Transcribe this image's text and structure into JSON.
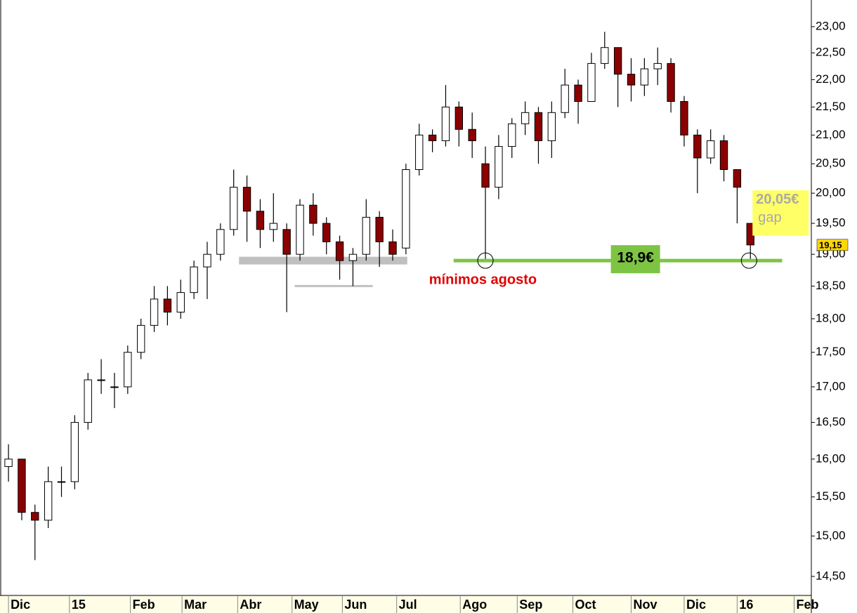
{
  "chart_data": {
    "type": "candlestick",
    "x": [
      0,
      1,
      2,
      3,
      4,
      5,
      6,
      7,
      8,
      9,
      10,
      11,
      12,
      13,
      14,
      15,
      16,
      17,
      18,
      19,
      20,
      21,
      22,
      23,
      24,
      25,
      26,
      27,
      28,
      29,
      30,
      31,
      32,
      33,
      34,
      35,
      36,
      37,
      38,
      39,
      40,
      41,
      42,
      43,
      44,
      45,
      46,
      47,
      48,
      49,
      50,
      51,
      52,
      53,
      54,
      55,
      56
    ],
    "open": [
      15.9,
      16.0,
      15.3,
      15.2,
      15.7,
      15.7,
      16.5,
      17.1,
      17.0,
      17.0,
      17.5,
      17.9,
      18.3,
      18.1,
      18.4,
      18.8,
      19.0,
      19.4,
      20.1,
      19.7,
      19.4,
      19.4,
      19.0,
      19.8,
      19.5,
      19.2,
      18.9,
      19.0,
      19.6,
      19.2,
      19.1,
      20.4,
      21.0,
      20.9,
      21.5,
      21.1,
      20.5,
      20.1,
      20.8,
      21.2,
      21.4,
      20.9,
      21.4,
      21.9,
      21.6,
      22.3,
      22.6,
      22.1,
      21.9,
      22.2,
      22.3,
      21.6,
      21.0,
      20.6,
      20.9,
      20.4,
      19.5
    ],
    "high": [
      16.2,
      16.0,
      15.4,
      15.9,
      15.9,
      16.6,
      17.2,
      17.4,
      17.2,
      17.6,
      18.0,
      18.5,
      18.5,
      18.6,
      18.9,
      19.2,
      19.5,
      20.4,
      20.3,
      19.9,
      20.0,
      19.5,
      19.9,
      20.0,
      19.6,
      19.3,
      19.1,
      19.9,
      19.7,
      19.4,
      20.5,
      21.2,
      21.1,
      21.9,
      21.6,
      21.4,
      20.8,
      21.0,
      21.3,
      21.6,
      21.5,
      21.6,
      22.2,
      22.0,
      22.5,
      22.9,
      22.6,
      22.4,
      22.4,
      22.6,
      22.4,
      21.7,
      21.1,
      21.1,
      21.0,
      20.4,
      19.5
    ],
    "low": [
      15.7,
      15.2,
      14.7,
      15.1,
      15.5,
      15.6,
      16.4,
      16.9,
      16.7,
      16.9,
      17.4,
      17.8,
      17.9,
      18.0,
      18.3,
      18.3,
      18.9,
      19.3,
      19.2,
      19.1,
      19.2,
      18.1,
      18.9,
      19.3,
      19.0,
      18.6,
      18.5,
      18.9,
      18.8,
      18.9,
      19.0,
      20.3,
      20.7,
      20.8,
      20.8,
      20.6,
      18.9,
      19.9,
      20.6,
      21.0,
      20.5,
      20.6,
      21.3,
      21.2,
      21.6,
      22.2,
      21.5,
      21.6,
      21.7,
      21.9,
      21.4,
      20.8,
      20.0,
      20.5,
      20.2,
      19.5,
      18.9
    ],
    "close": [
      16.0,
      15.3,
      15.2,
      15.7,
      15.7,
      16.5,
      17.1,
      17.1,
      17.0,
      17.5,
      17.9,
      18.3,
      18.1,
      18.4,
      18.8,
      19.0,
      19.4,
      20.1,
      19.7,
      19.4,
      19.5,
      19.0,
      19.8,
      19.5,
      19.2,
      18.9,
      19.0,
      19.6,
      19.2,
      19.0,
      20.4,
      21.0,
      20.9,
      21.5,
      21.1,
      20.9,
      20.1,
      20.8,
      21.2,
      21.4,
      20.9,
      21.4,
      21.9,
      21.6,
      22.3,
      22.6,
      22.1,
      21.9,
      22.2,
      22.3,
      21.6,
      21.0,
      20.6,
      20.9,
      20.4,
      20.1,
      19.15
    ],
    "up_color": "#ffffff",
    "down_color": "#8b0000",
    "xlim": [
      -0.64,
      60.6
    ],
    "xticks": [
      {
        "value": 0,
        "label": "Dic"
      },
      {
        "value": 4.6,
        "label": "15"
      },
      {
        "value": 9.2,
        "label": "Feb"
      },
      {
        "value": 13.1,
        "label": "Mar"
      },
      {
        "value": 17.3,
        "label": "Abr"
      },
      {
        "value": 21.4,
        "label": "May"
      },
      {
        "value": 25.2,
        "label": "Jun"
      },
      {
        "value": 29.3,
        "label": "Jul"
      },
      {
        "value": 34.1,
        "label": "Ago"
      },
      {
        "value": 38.4,
        "label": "Sep"
      },
      {
        "value": 42.6,
        "label": "Oct"
      },
      {
        "value": 47,
        "label": "Nov"
      },
      {
        "value": 51,
        "label": "Dic"
      },
      {
        "value": 55,
        "label": "16"
      },
      {
        "value": 59.3,
        "label": "Feb"
      }
    ],
    "ylim": [
      14.27,
      23.52
    ],
    "log": true,
    "yticks": [
      {
        "value": 14.5,
        "label": "14,50"
      },
      {
        "value": 15,
        "label": "15,00"
      },
      {
        "value": 15.5,
        "label": "15,50"
      },
      {
        "value": 16,
        "label": "16,00"
      },
      {
        "value": 16.5,
        "label": "16,50"
      },
      {
        "value": 17,
        "label": "17,00"
      },
      {
        "value": 17.5,
        "label": "17,50"
      },
      {
        "value": 18,
        "label": "18,00"
      },
      {
        "value": 18.5,
        "label": "18,50"
      },
      {
        "value": 19,
        "label": "19,00"
      },
      {
        "value": 19.5,
        "label": "19,50"
      },
      {
        "value": 20,
        "label": "20,00"
      },
      {
        "value": 20.5,
        "label": "20,50"
      },
      {
        "value": 21,
        "label": "21,00"
      },
      {
        "value": 21.5,
        "label": "21,50"
      },
      {
        "value": 22,
        "label": "22,00"
      },
      {
        "value": 22.5,
        "label": "22,50"
      },
      {
        "value": 23,
        "label": "23,00"
      }
    ],
    "last_price": {
      "value": 19.15,
      "label": "19,15"
    },
    "zones": [
      {
        "value": 18.9,
        "x": [
          17.4,
          30.1
        ],
        "color": "#c0c0c0",
        "width": 11
      },
      {
        "value": 18.5,
        "x": [
          21.6,
          27.5
        ],
        "color": "#c0c0c0",
        "width": 3
      }
    ],
    "support": {
      "value": 18.9,
      "x": [
        33.6,
        58.4
      ],
      "color": "#7dc443",
      "label": {
        "value": 18.9,
        "label": "18,9€"
      },
      "note": "mínimos agosto",
      "circles": [
        36.0,
        55.9
      ]
    },
    "gap": {
      "from": 20.05,
      "to": 19.3,
      "label": "20,05€",
      "text": "gap",
      "color": "#ffff66"
    }
  }
}
